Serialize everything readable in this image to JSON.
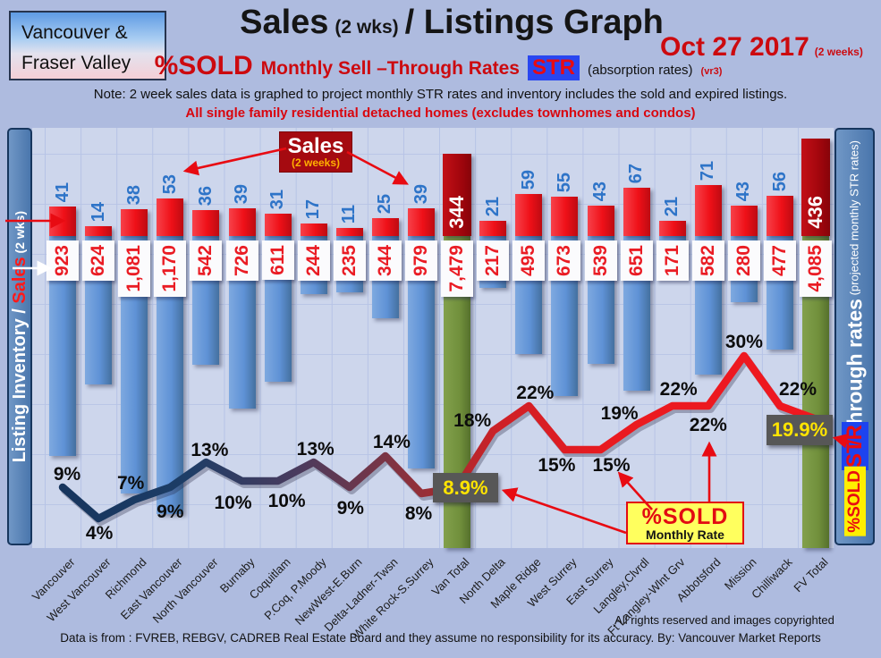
{
  "header": {
    "region_line1": "Vancouver &",
    "region_line2": "Fraser Valley",
    "title_main": "Sales",
    "title_paren": "(2 wks)",
    "title_rest": "/ Listings Graph",
    "date": "Oct 27 2017",
    "date_note": "(2 weeks)",
    "subtitle_pct": "%SOLD",
    "subtitle_mid": "Monthly Sell –Through Rates",
    "subtitle_str": "STR",
    "subtitle_abs": "(absorption rates)",
    "subtitle_ver": "(vr3)",
    "note": "Note: 2 week sales data is graphed to project monthly STR rates and inventory includes the sold and expired listings.",
    "scope": "All single family residential detached homes (excludes townhomes and condos)"
  },
  "axes": {
    "left_label_part1": "Listing Inventory / ",
    "left_label_red": "Sales",
    "left_label_part2": " (2  wks)",
    "right_label_main": "Sell-through rates",
    "right_label_sub": "  (projected monthly STR rates)",
    "right_str_badge": "STR",
    "right_sold_badge": "%SOLD"
  },
  "annotations": {
    "sales_box_title": "Sales",
    "sales_box_sub": "(2 weeks)",
    "sold_box_title": "%SOLD",
    "sold_box_sub": "Monthly Rate",
    "van_total_rate": "8.9%",
    "fv_total_rate": "19.9%"
  },
  "footer": {
    "rights": "All rights reserved and  images copyrighted",
    "source": "Data is from : FVREB, REBGV, CADREB Real Estate Board and they assume no responsibility for its accuracy. By: Vancouver Market Reports"
  },
  "chart_data": {
    "type": "combo (red bars up = 2-week sales, blue bars down = listing inventory, line on right axis = projected monthly sell-through rate %)",
    "categories": [
      "Vancouver",
      "West Vancouver",
      "Richmond",
      "East Vancouver",
      "North Vancouver",
      "Burnaby",
      "Coquitlam",
      "P.Coq, P.Moody",
      "NewWest-E.Burn",
      "Delta-Ladner-Twsn",
      "White Rock-S.Surrey",
      "Van Total",
      "North Delta",
      "Maple Ridge",
      "West Surrey",
      "East Surrey",
      "Langley,Clvrdl",
      "Ft Langley-Wlnt Grv",
      "Abbotsford",
      "Mission",
      "Chilliwack",
      "FV Total"
    ],
    "series": [
      {
        "name": "Sales (2 weeks)",
        "values": [
          41,
          14,
          38,
          53,
          36,
          39,
          31,
          17,
          11,
          25,
          39,
          344,
          21,
          59,
          55,
          43,
          67,
          21,
          71,
          43,
          56,
          436
        ]
      },
      {
        "name": "Listing Inventory (includes sold and expired)",
        "values": [
          923,
          624,
          1081,
          1170,
          542,
          726,
          611,
          244,
          235,
          344,
          979,
          7479,
          217,
          495,
          673,
          539,
          651,
          171,
          582,
          280,
          477,
          4085
        ]
      },
      {
        "name": "Sell-through rate % (projected monthly STR)",
        "values": [
          9,
          4,
          7,
          9,
          13,
          10,
          10,
          13,
          9,
          14,
          8,
          8.9,
          18,
          22,
          15,
          15,
          19,
          22,
          22,
          30,
          22,
          19.9
        ]
      }
    ],
    "labels": {
      "sales": [
        "41",
        "14",
        "38",
        "53",
        "36",
        "39",
        "31",
        "17",
        "11",
        "25",
        "39",
        "344",
        "21",
        "59",
        "55",
        "43",
        "67",
        "21",
        "71",
        "43",
        "56",
        "436"
      ],
      "inventory": [
        "923",
        "624",
        "1,081",
        "1,170",
        "542",
        "726",
        "611",
        "244",
        "235",
        "344",
        "979",
        "7,479",
        "217",
        "495",
        "673",
        "539",
        "651",
        "171",
        "582",
        "280",
        "477",
        "4,085"
      ],
      "str": [
        "9%",
        "4%",
        "7%",
        "9%",
        "13%",
        "10%",
        "10%",
        "13%",
        "9%",
        "14%",
        "8%",
        "8.9%",
        "18%",
        "22%",
        "15%",
        "15%",
        "19%",
        "22%",
        "22%",
        "30%",
        "22%",
        "19.9%"
      ]
    },
    "totals_indices": [
      11,
      21
    ],
    "legend_position": "annotations on chart",
    "grid": true,
    "colors": {
      "sales_bar": "#ee1c23",
      "inventory_bar": "#5f92d6",
      "total_sales_bar": "#a3060d",
      "total_inventory_bar": "#71903c",
      "str_line_start": "#17355e",
      "str_line_end": "#ee1c23",
      "sales_value_text": "#2e74c8",
      "inventory_value_text": "#ea1c24",
      "rate_box_bg": "#575757",
      "rate_box_text": "#ffe400"
    }
  }
}
